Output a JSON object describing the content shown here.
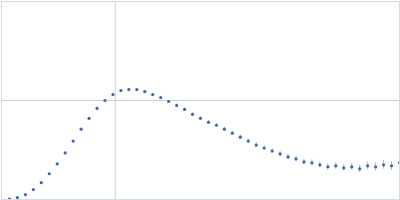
{
  "chart_data": {
    "type": "scatter",
    "x": [
      0.07,
      0.14,
      0.21,
      0.28,
      0.35,
      0.42,
      0.49,
      0.56,
      0.63,
      0.7,
      0.77,
      0.84,
      0.91,
      0.98,
      1.05,
      1.12,
      1.19,
      1.26,
      1.33,
      1.4,
      1.47,
      1.54,
      1.61,
      1.68,
      1.75,
      1.82,
      1.89,
      1.96,
      2.03,
      2.1,
      2.17,
      2.24,
      2.31,
      2.38,
      2.45,
      2.52,
      2.59,
      2.66,
      2.73,
      2.8,
      2.87,
      2.94,
      3.01,
      3.08,
      3.15,
      3.22,
      3.29,
      3.36,
      3.43,
      3.5
    ],
    "values": [
      0.005,
      0.02,
      0.05,
      0.1,
      0.17,
      0.26,
      0.36,
      0.47,
      0.59,
      0.71,
      0.82,
      0.92,
      1.0,
      1.06,
      1.1,
      1.11,
      1.11,
      1.09,
      1.06,
      1.03,
      0.99,
      0.95,
      0.91,
      0.86,
      0.82,
      0.78,
      0.75,
      0.71,
      0.67,
      0.63,
      0.59,
      0.55,
      0.52,
      0.49,
      0.46,
      0.43,
      0.41,
      0.38,
      0.37,
      0.35,
      0.33,
      0.34,
      0.32,
      0.33,
      0.31,
      0.34,
      0.33,
      0.35,
      0.34,
      0.37
    ],
    "errors": [
      0.002,
      0.002,
      0.003,
      0.003,
      0.004,
      0.004,
      0.005,
      0.005,
      0.006,
      0.006,
      0.007,
      0.007,
      0.008,
      0.008,
      0.009,
      0.009,
      0.01,
      0.01,
      0.011,
      0.012,
      0.012,
      0.013,
      0.014,
      0.015,
      0.016,
      0.017,
      0.018,
      0.019,
      0.02,
      0.021,
      0.022,
      0.023,
      0.024,
      0.025,
      0.026,
      0.027,
      0.028,
      0.03,
      0.031,
      0.032,
      0.033,
      0.035,
      0.036,
      0.037,
      0.039,
      0.04,
      0.042,
      0.044,
      0.046,
      0.05
    ],
    "color": "#3a66b8",
    "marker": "circle",
    "xlim": [
      0,
      3.5
    ],
    "xticks": [
      1
    ],
    "ylim": [
      0,
      2
    ],
    "yticks": [
      1
    ],
    "grid": true,
    "tick_labels": false
  }
}
